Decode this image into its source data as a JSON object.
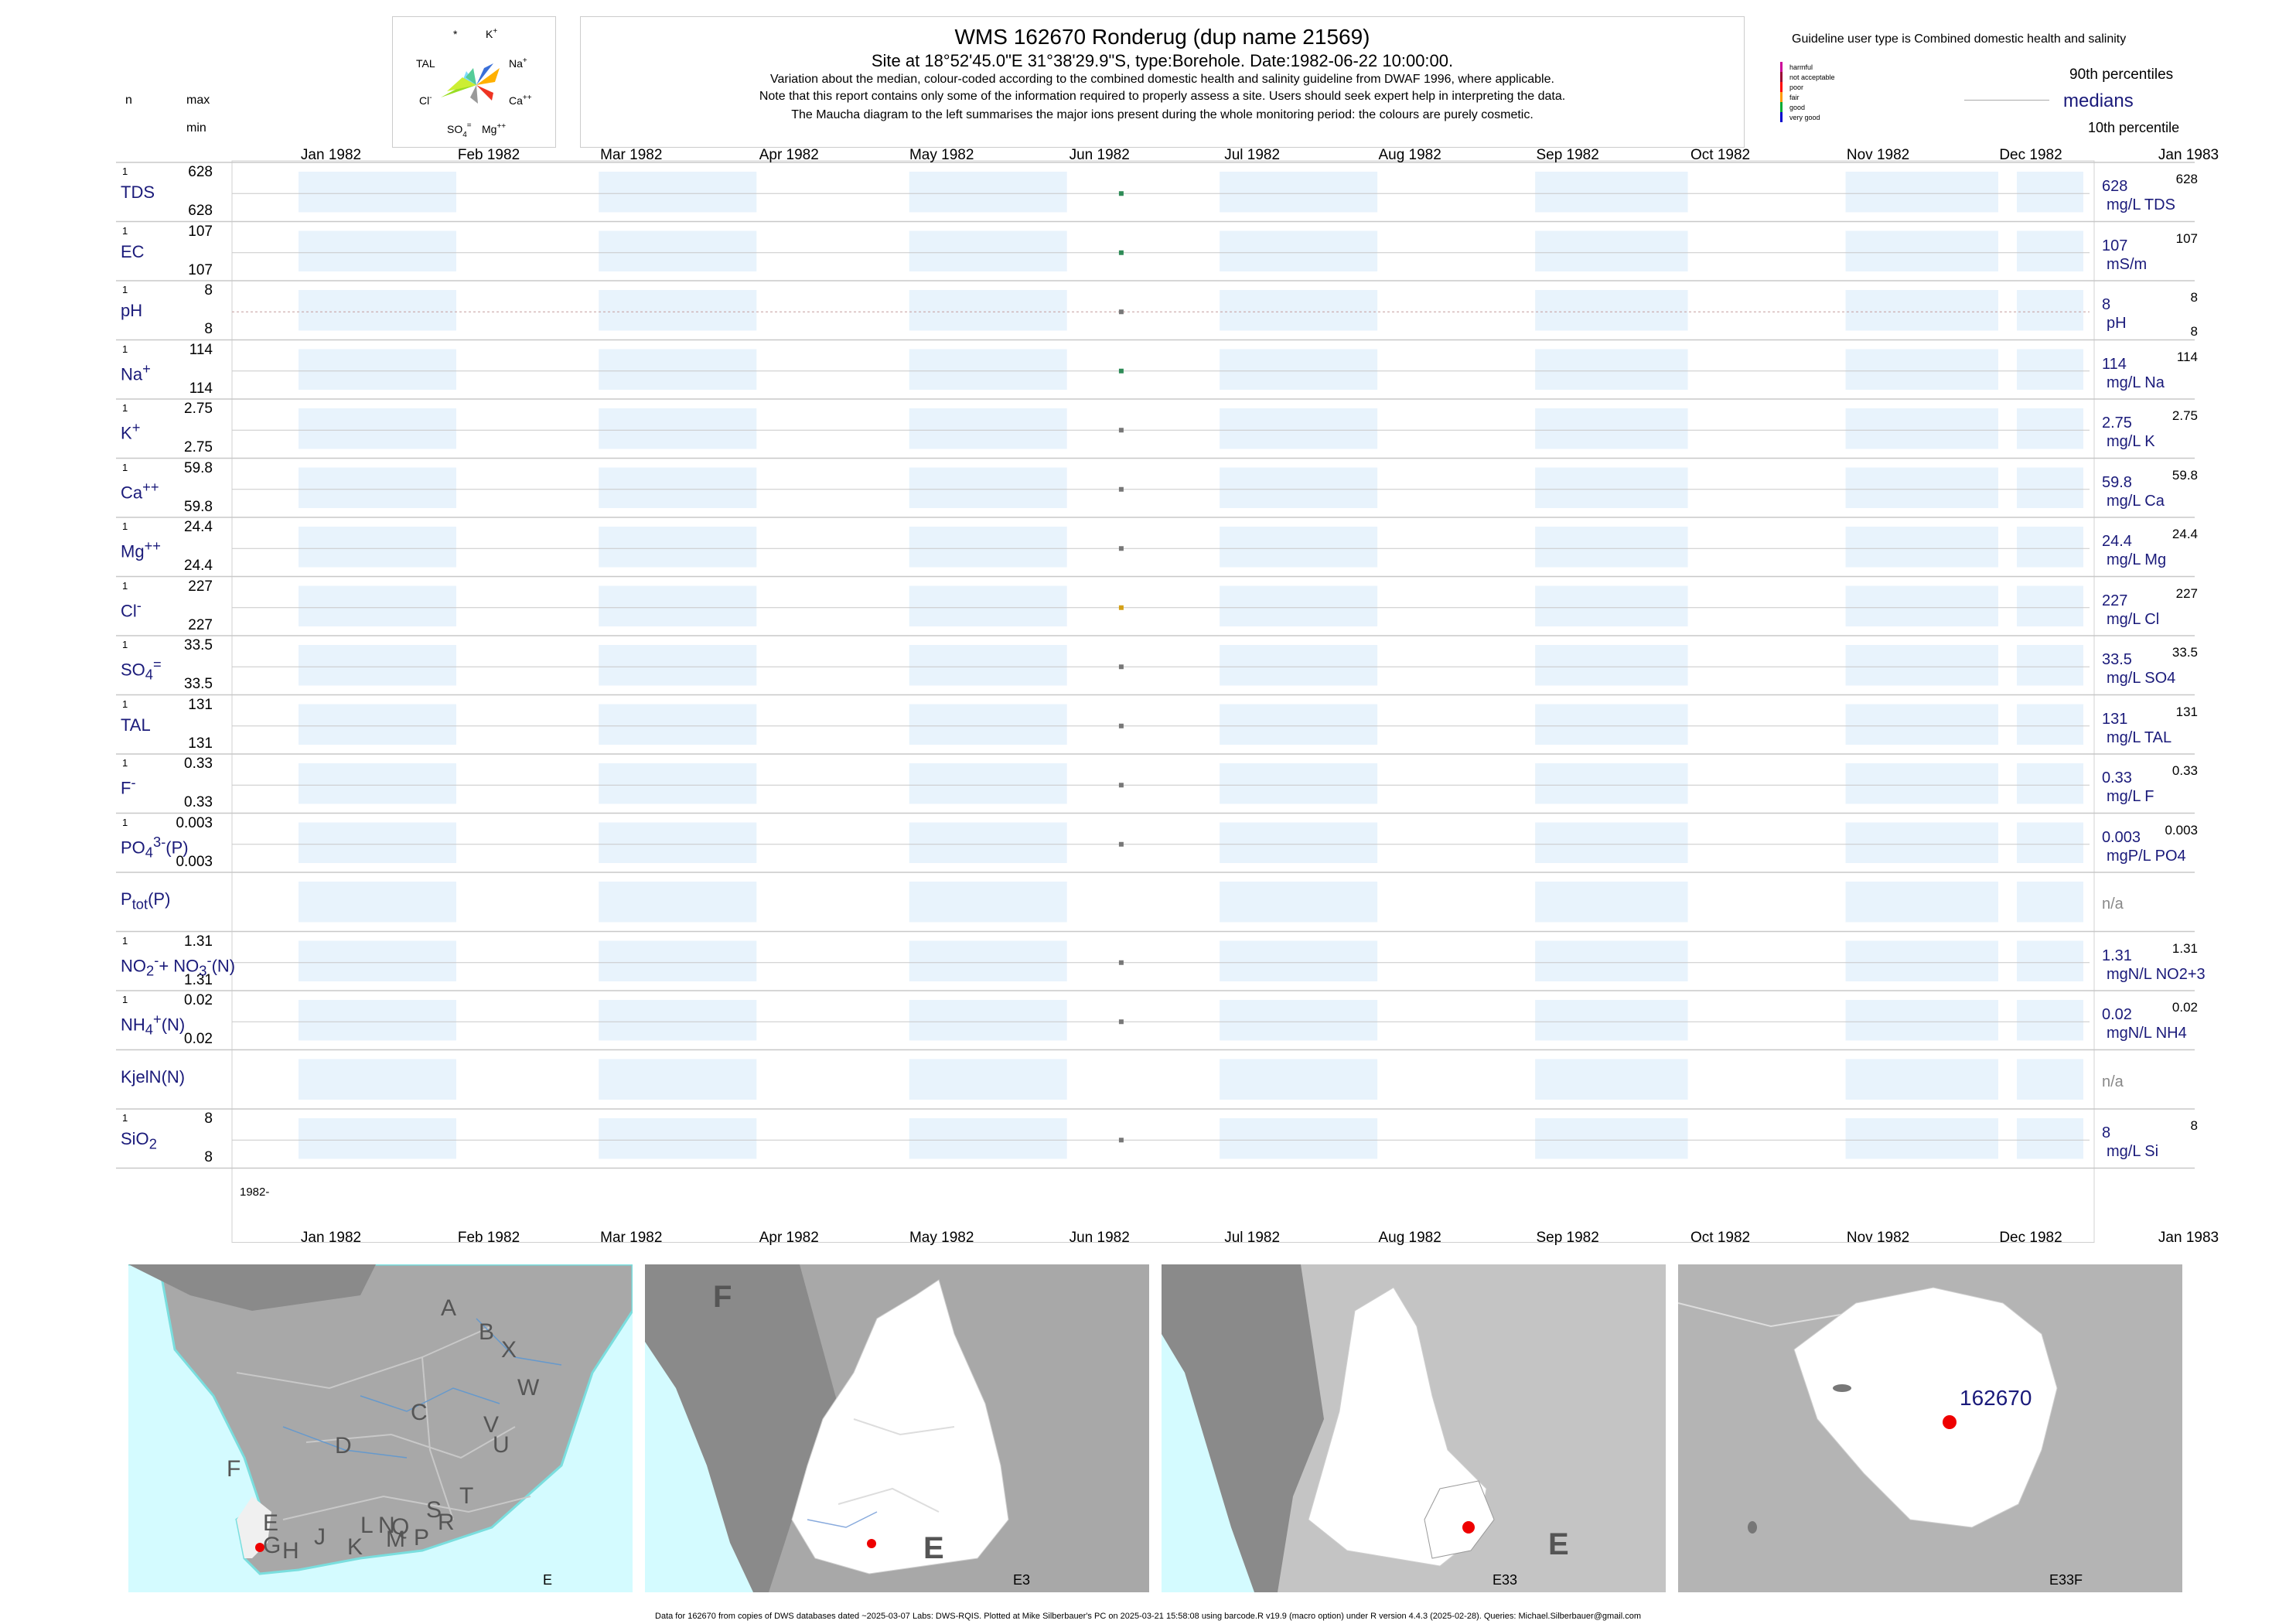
{
  "header": {
    "title": "WMS 162670  Ronderug (dup name 21569)",
    "site": "Site at 18°52'45.0\"E 31°38'29.9\"S, type:Borehole. Date:1982-06-22 10:00:00.",
    "note1": "Variation about the median,  colour-coded according to the combined domestic health and salinity guideline from DWAF 1996, where applicable.",
    "note2": "Note that this report contains only some of the information required to properly assess a site. Users should seek expert help in interpreting the data.",
    "note3": "The Maucha diagram to the left summarises the major ions present during the whole monitoring period: the colours are purely cosmetic."
  },
  "left_header": {
    "n": "n",
    "max": "max",
    "min": "min"
  },
  "maucha": {
    "labels": [
      "*",
      "K+",
      "TAL",
      "Na+",
      "Cl-",
      "Ca++",
      "SO4=",
      "Mg++"
    ]
  },
  "legend": {
    "guideline_text": "Guideline user type is Combined domestic health and salinity",
    "classes": [
      {
        "label": "harmful",
        "color": "#cc0099"
      },
      {
        "label": "not acceptable",
        "color": "#990033"
      },
      {
        "label": "poor",
        "color": "#ff0000"
      },
      {
        "label": "fair",
        "color": "#ff9900"
      },
      {
        "label": "good",
        "color": "#00aa33"
      },
      {
        "label": "very good",
        "color": "#0000cc"
      }
    ],
    "p90": "90th percentiles",
    "medians": "medians",
    "p10": "10th percentile"
  },
  "chart_data": {
    "type": "scatter",
    "x_axis": {
      "ticks": [
        "Jan 1982",
        "Feb 1982",
        "Mar 1982",
        "Apr 1982",
        "May 1982",
        "Jun 1982",
        "Jul 1982",
        "Aug 1982",
        "Sep 1982",
        "Oct 1982",
        "Nov 1982",
        "Dec 1982",
        "Jan 1983"
      ],
      "range": [
        "1982-01-01",
        "1983-01-01"
      ],
      "year_label": "1982-"
    },
    "sample_date": "1982-06-22",
    "series": [
      {
        "name": "TDS",
        "html": "TDS",
        "n": "1",
        "max": "628",
        "min": "628",
        "value": 628,
        "right_value": "628",
        "right_unit": "mg/L TDS",
        "right_sup": "628",
        "point_color": "#2e8b57"
      },
      {
        "name": "EC",
        "html": "EC",
        "n": "1",
        "max": "107",
        "min": "107",
        "value": 107,
        "right_value": "107",
        "right_unit": "mS/m",
        "right_sup": "107",
        "point_color": "#2e8b57"
      },
      {
        "name": "pH",
        "html": "pH",
        "n": "1",
        "max": "8",
        "min": "8",
        "value": 8,
        "right_value": "8",
        "right_unit": "pH",
        "right_sup": "8",
        "right_sub": "8",
        "point_color": "#777777",
        "has_line": true
      },
      {
        "name": "Na+",
        "html": "Na<sup>+</sup>",
        "n": "1",
        "max": "114",
        "min": "114",
        "value": 114,
        "right_value": "114",
        "right_unit": "mg/L Na",
        "right_sup": "114",
        "point_color": "#2e8b57"
      },
      {
        "name": "K+",
        "html": "K<sup>+</sup>",
        "n": "1",
        "max": "2.75",
        "min": "2.75",
        "value": 2.75,
        "right_value": "2.75",
        "right_unit": "mg/L K",
        "right_sup": "2.75",
        "point_color": "#777777"
      },
      {
        "name": "Ca++",
        "html": "Ca<sup>++</sup>",
        "n": "1",
        "max": "59.8",
        "min": "59.8",
        "value": 59.8,
        "right_value": "59.8",
        "right_unit": "mg/L Ca",
        "right_sup": "59.8",
        "point_color": "#777777"
      },
      {
        "name": "Mg++",
        "html": "Mg<sup>++</sup>",
        "n": "1",
        "max": "24.4",
        "min": "24.4",
        "value": 24.4,
        "right_value": "24.4",
        "right_unit": "mg/L Mg",
        "right_sup": "24.4",
        "point_color": "#777777"
      },
      {
        "name": "Cl-",
        "html": "Cl<sup>-</sup>",
        "n": "1",
        "max": "227",
        "min": "227",
        "value": 227,
        "right_value": "227",
        "right_unit": "mg/L Cl",
        "right_sup": "227",
        "point_color": "#d4a017"
      },
      {
        "name": "SO4=",
        "html": "SO<sub>4</sub><sup>=</sup>",
        "n": "1",
        "max": "33.5",
        "min": "33.5",
        "value": 33.5,
        "right_value": "33.5",
        "right_unit": "mg/L SO4",
        "right_sup": "33.5",
        "point_color": "#777777"
      },
      {
        "name": "TAL",
        "html": "TAL",
        "n": "1",
        "max": "131",
        "min": "131",
        "value": 131,
        "right_value": "131",
        "right_unit": "mg/L TAL",
        "right_sup": "131",
        "point_color": "#777777"
      },
      {
        "name": "F-",
        "html": "F<sup>-</sup>",
        "n": "1",
        "max": "0.33",
        "min": "0.33",
        "value": 0.33,
        "right_value": "0.33",
        "right_unit": "mg/L F",
        "right_sup": "0.33",
        "point_color": "#777777"
      },
      {
        "name": "PO4(P)",
        "html": "PO<sub>4</sub><sup>3-</sup>(P)",
        "n": "1",
        "max": "0.003",
        "min": "0.003",
        "value": 0.003,
        "right_value": "0.003",
        "right_unit": "mgP/L PO4",
        "right_sup": "0.003",
        "point_color": "#777777"
      },
      {
        "name": "Ptot(P)",
        "html": "P<sub>tot</sub>(P)",
        "n": "",
        "max": "",
        "min": "",
        "value": null,
        "right_value": "n/a",
        "right_unit": "",
        "right_sup": "",
        "point_color": ""
      },
      {
        "name": "NO2+NO3(N)",
        "html": "NO<sub>2</sub><sup>-</sup>+ NO<sub>3</sub><sup>-</sup>(N)",
        "n": "1",
        "max": "1.31",
        "min": "1.31",
        "value": 1.31,
        "right_value": "1.31",
        "right_unit": "mgN/L NO2+3",
        "right_sup": "1.31",
        "point_color": "#777777"
      },
      {
        "name": "NH4(N)",
        "html": "NH<sub>4</sub><sup>+</sup>(N)",
        "n": "1",
        "max": "0.02",
        "min": "0.02",
        "value": 0.02,
        "right_value": "0.02",
        "right_unit": "mgN/L NH4",
        "right_sup": "0.02",
        "point_color": "#777777"
      },
      {
        "name": "KjelN(N)",
        "html": "KjelN(N)",
        "n": "",
        "max": "",
        "min": "",
        "value": null,
        "right_value": "n/a",
        "right_unit": "",
        "right_sup": "",
        "point_color": ""
      },
      {
        "name": "SiO2",
        "html": "SiO<sub>2</sub>",
        "n": "1",
        "max": "8",
        "min": "8",
        "value": 8,
        "right_value": "8",
        "right_unit": "mg/L Si",
        "right_sup": "8",
        "point_color": "#777777"
      }
    ]
  },
  "maps": [
    {
      "corner": "E",
      "letters": [
        "A",
        "B",
        "X",
        "W",
        "C",
        "D",
        "V",
        "U",
        "T",
        "F",
        "E",
        "S",
        "R",
        "Q",
        "P",
        "M",
        "N",
        "L",
        "K",
        "J",
        "H",
        "G"
      ]
    },
    {
      "corner": "E3",
      "letters": [
        "F",
        "E"
      ]
    },
    {
      "corner": "E33",
      "letters": [
        "E"
      ]
    },
    {
      "corner": "E33F",
      "site": "162670"
    }
  ],
  "footer": "Data for 162670 from copies of DWS databases dated ~2025-03-07 Labs: DWS-RQIS. Plotted at Mike Silberbauer's PC on 2025-03-21 15:58:08 using barcode.R v19.9 (macro option) under R version 4.4.3 (2025-02-28). Queries: Michael.Silberbauer@gmail.com"
}
